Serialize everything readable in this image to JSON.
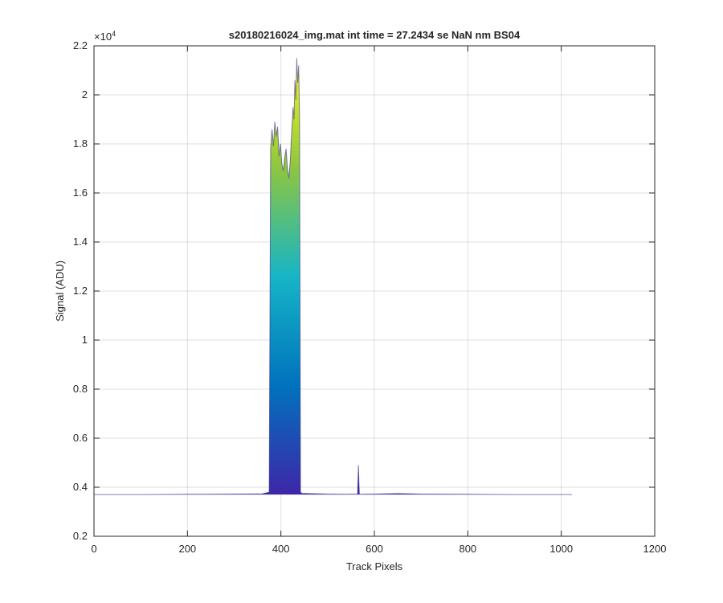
{
  "chart_data": {
    "type": "area",
    "title": "s20180216024_img.mat int time = 27.2434 se  NaN nm BS04",
    "xlabel": "Track Pixels",
    "ylabel": "Signal (ADU)",
    "exponent_base": "×10",
    "exponent_power": "4",
    "xlim": [
      0,
      1200
    ],
    "ylim": [
      0.2,
      2.2
    ],
    "y_scale_factor": 10000,
    "x_ticks": [
      0,
      200,
      400,
      600,
      800,
      1000,
      1200
    ],
    "x_tick_labels": [
      "0",
      "200",
      "400",
      "600",
      "800",
      "1000",
      "1200"
    ],
    "y_ticks": [
      0.2,
      0.4,
      0.6,
      0.8,
      1,
      1.2,
      1.4,
      1.6,
      1.8,
      2,
      2.2
    ],
    "y_tick_labels": [
      "0.2",
      "0.4",
      "0.6",
      "0.8",
      "1",
      "1.2",
      "1.4",
      "1.6",
      "1.8",
      "2",
      "2.2"
    ],
    "grid": true,
    "colormap": [
      "#3e26a8",
      "#0072bd",
      "#16b5c6",
      "#8ec63f",
      "#f9fb0e"
    ],
    "series": [
      {
        "x": [
          0,
          100,
          200,
          300,
          360,
          375,
          378,
          381,
          384,
          387,
          390,
          393,
          396,
          399,
          402,
          405,
          408,
          411,
          414,
          417,
          420,
          423,
          426,
          428,
          430,
          432,
          434,
          436,
          438,
          440,
          442,
          445,
          460,
          500,
          540,
          564,
          566,
          567,
          568,
          570,
          600,
          650,
          700,
          800,
          900,
          1000,
          1023
        ],
        "y": [
          0.37,
          0.37,
          0.371,
          0.372,
          0.373,
          0.38,
          1.78,
          1.86,
          1.79,
          1.89,
          1.83,
          1.87,
          1.75,
          1.8,
          1.72,
          1.69,
          1.74,
          1.78,
          1.7,
          1.66,
          1.73,
          1.84,
          1.95,
          1.9,
          2.06,
          1.98,
          2.15,
          2.05,
          2.12,
          1.9,
          0.38,
          0.375,
          0.374,
          0.372,
          0.371,
          0.372,
          0.49,
          0.42,
          0.372,
          0.371,
          0.372,
          0.374,
          0.372,
          0.371,
          0.37,
          0.37,
          0.37
        ]
      }
    ]
  }
}
